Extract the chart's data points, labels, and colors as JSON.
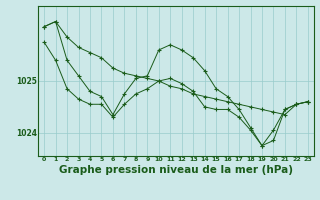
{
  "background_color": "#cce8e8",
  "plot_bg_color": "#cce8e8",
  "line_color": "#1a5c1a",
  "grid_color": "#99cccc",
  "title": "Graphe pression niveau de la mer (hPa)",
  "title_fontsize": 7.5,
  "xlim": [
    -0.5,
    23.5
  ],
  "ylim": [
    1023.55,
    1026.45
  ],
  "yticks": [
    1024,
    1025
  ],
  "xticks": [
    0,
    1,
    2,
    3,
    4,
    5,
    6,
    7,
    8,
    9,
    10,
    11,
    12,
    13,
    14,
    15,
    16,
    17,
    18,
    19,
    20,
    21,
    22,
    23
  ],
  "series": [
    [
      1026.05,
      1026.15,
      1025.85,
      1025.65,
      1025.55,
      1025.45,
      1025.25,
      1025.15,
      1025.1,
      1025.05,
      1025.0,
      1024.9,
      1024.85,
      1024.75,
      1024.7,
      1024.65,
      1024.6,
      1024.55,
      1024.5,
      1024.45,
      1024.4,
      1024.35,
      1024.55,
      1024.6
    ],
    [
      1026.05,
      1026.15,
      1025.4,
      1025.1,
      1024.8,
      1024.7,
      1024.35,
      1024.75,
      1025.05,
      1025.1,
      1025.6,
      1025.7,
      1025.6,
      1025.45,
      1025.2,
      1024.85,
      1024.7,
      1024.45,
      1024.1,
      1023.75,
      1024.05,
      1024.45,
      1024.55,
      1024.6
    ],
    [
      1025.75,
      1025.4,
      1024.85,
      1024.65,
      1024.55,
      1024.55,
      1024.3,
      1024.55,
      1024.75,
      1024.85,
      1025.0,
      1025.05,
      1024.95,
      1024.8,
      1024.5,
      1024.45,
      1024.45,
      1024.3,
      1024.05,
      1023.75,
      1023.85,
      1024.45,
      1024.55,
      1024.6
    ]
  ]
}
